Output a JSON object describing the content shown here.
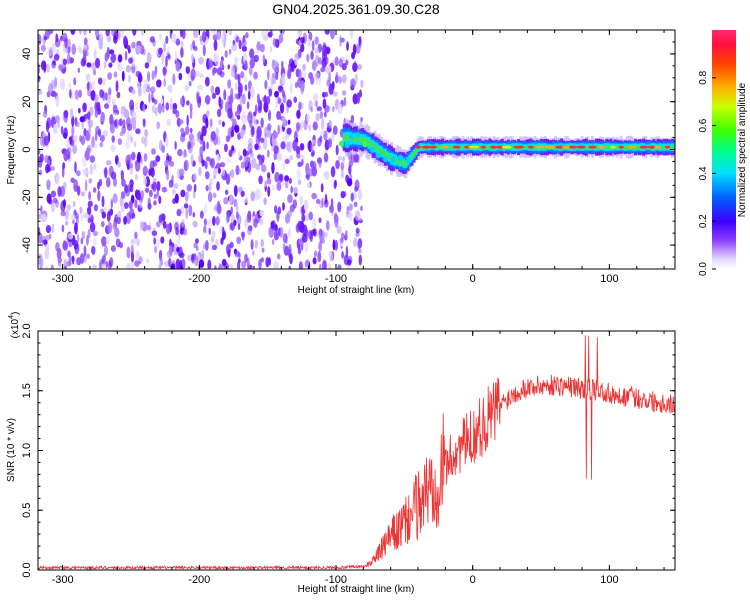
{
  "title": "GN04.2025.361.09.30.C28",
  "chart_data": [
    {
      "type": "heatmap",
      "name": "spectrogram",
      "xlabel": "Height of straight line (km)",
      "ylabel": "Frequency (Hz)",
      "xlim": [
        -318,
        148
      ],
      "ylim": [
        -50,
        50
      ],
      "xticks": [
        -300,
        -200,
        -100,
        0,
        100
      ],
      "yticks": [
        -40,
        -20,
        0,
        20,
        40
      ],
      "noise_region_x": [
        -318,
        -85
      ],
      "signal_band": [
        {
          "x": -95,
          "f_center": 5,
          "width": 7
        },
        {
          "x": -80,
          "f_center": 4,
          "width": 6
        },
        {
          "x": -70,
          "f_center": 0,
          "width": 6
        },
        {
          "x": -60,
          "f_center": -4,
          "width": 6
        },
        {
          "x": -50,
          "f_center": -6,
          "width": 5
        },
        {
          "x": -40,
          "f_center": 1,
          "width": 4
        },
        {
          "x": 0,
          "f_center": 1,
          "width": 4
        },
        {
          "x": 50,
          "f_center": 1,
          "width": 4
        },
        {
          "x": 100,
          "f_center": 1,
          "width": 4
        },
        {
          "x": 148,
          "f_center": 1,
          "width": 4
        }
      ],
      "colorbar": {
        "label": "Normalized spectral amplitude",
        "range": [
          0,
          1
        ],
        "ticks": [
          "0.0",
          "0.2",
          "0.4",
          "0.6",
          "0.8"
        ],
        "tick_values": [
          0.0,
          0.2,
          0.4,
          0.6,
          0.8
        ]
      }
    },
    {
      "type": "line",
      "name": "snr",
      "color": "#ee3333",
      "xlabel": "Height of straight line (km)",
      "ylabel": "SNR (10 * v/v)",
      "scale_label": "(x10",
      "scale_exp": "4",
      "xlim": [
        -318,
        148
      ],
      "ylim": [
        0,
        2.0
      ],
      "xticks": [
        -300,
        -200,
        -100,
        0,
        100
      ],
      "yticks": [
        "0.0",
        "0.5",
        "1.0",
        "1.5",
        "2.0"
      ],
      "ytick_values": [
        0.0,
        0.5,
        1.0,
        1.5,
        2.0
      ],
      "envelope_x": [
        -318,
        -100,
        -78,
        -70,
        -60,
        -50,
        -40,
        -30,
        -20,
        -10,
        0,
        10,
        20,
        30,
        40,
        60,
        80,
        100,
        120,
        148
      ],
      "envelope_y": [
        0.02,
        0.02,
        0.03,
        0.12,
        0.28,
        0.38,
        0.55,
        0.72,
        0.88,
        1.02,
        1.12,
        1.25,
        1.38,
        1.48,
        1.53,
        1.55,
        1.52,
        1.48,
        1.44,
        1.38
      ]
    }
  ]
}
